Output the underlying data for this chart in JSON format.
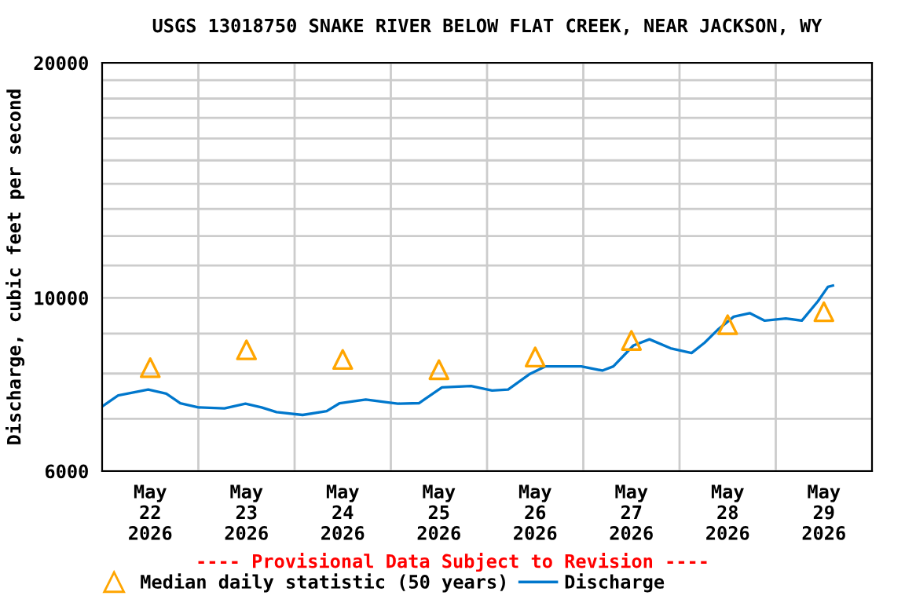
{
  "chart_data": {
    "type": "line",
    "title": "USGS 13018750 SNAKE RIVER BELOW FLAT CREEK, NEAR JACKSON, WY",
    "ylabel": "Discharge, cubic feet per second",
    "log": "y",
    "grid": true,
    "legend": "bottom",
    "xlim": [
      "2026-05-22T00:00",
      "2026-05-30T00:00"
    ],
    "xticks": [
      {
        "value": "2026-05-22T12:00",
        "label": "May\n22\n2026"
      },
      {
        "value": "2026-05-23T00:00",
        "label": null
      },
      {
        "value": "2026-05-23T12:00",
        "label": "May\n23\n2026"
      },
      {
        "value": "2026-05-24T00:00",
        "label": null
      },
      {
        "value": "2026-05-24T12:00",
        "label": "May\n24\n2026"
      },
      {
        "value": "2026-05-25T00:00",
        "label": null
      },
      {
        "value": "2026-05-25T12:00",
        "label": "May\n25\n2026"
      },
      {
        "value": "2026-05-26T00:00",
        "label": null
      },
      {
        "value": "2026-05-26T12:00",
        "label": "May\n26\n2026"
      },
      {
        "value": "2026-05-27T00:00",
        "label": null
      },
      {
        "value": "2026-05-27T12:00",
        "label": "May\n27\n2026"
      },
      {
        "value": "2026-05-28T00:00",
        "label": null
      },
      {
        "value": "2026-05-28T12:00",
        "label": "May\n28\n2026"
      },
      {
        "value": "2026-05-29T00:00",
        "label": null
      },
      {
        "value": "2026-05-29T12:00",
        "label": "May\n29\n2026"
      }
    ],
    "ylim": [
      6000,
      20000
    ],
    "yticks": [
      6000,
      {
        "value": 7000,
        "label": null
      },
      {
        "value": 8000,
        "label": null
      },
      {
        "value": 9000,
        "label": null
      },
      10000,
      {
        "value": 11000,
        "label": null
      },
      {
        "value": 12000,
        "label": null
      },
      {
        "value": 13000,
        "label": null
      },
      {
        "value": 14000,
        "label": null
      },
      {
        "value": 15000,
        "label": null
      },
      {
        "value": 16000,
        "label": null
      },
      {
        "value": 17000,
        "label": null
      },
      {
        "value": 18000,
        "label": null
      },
      {
        "value": 19000,
        "label": null
      },
      20000
    ],
    "series": [
      {
        "name": "Median daily statistic (50 years)",
        "type": "scatter",
        "marker": "triangle",
        "color": "#ffa500",
        "x": [
          "2026-05-22T12:00",
          "2026-05-23T12:00",
          "2026-05-24T12:00",
          "2026-05-25T12:00",
          "2026-05-26T12:00",
          "2026-05-27T12:00",
          "2026-05-28T12:00",
          "2026-05-29T12:00"
        ],
        "values": [
          8140,
          8580,
          8340,
          8090,
          8400,
          8820,
          9240,
          9600
        ]
      },
      {
        "name": "Discharge",
        "marker": "none",
        "color": "#0077cc",
        "x": [
          "2026-05-22T00:00",
          "2026-05-22T04:00",
          "2026-05-22T11:30",
          "2026-05-22T16:00",
          "2026-05-22T19:30",
          "2026-05-23T00:00",
          "2026-05-23T06:30",
          "2026-05-23T11:45",
          "2026-05-23T15:45",
          "2026-05-23T19:30",
          "2026-05-24T02:00",
          "2026-05-24T08:00",
          "2026-05-24T11:15",
          "2026-05-24T17:45",
          "2026-05-24T23:00",
          "2026-05-25T01:45",
          "2026-05-25T07:00",
          "2026-05-25T12:45",
          "2026-05-25T20:00",
          "2026-05-26T01:15",
          "2026-05-26T05:15",
          "2026-05-26T10:30",
          "2026-05-26T14:30",
          "2026-05-26T23:30",
          "2026-05-27T04:45",
          "2026-05-27T07:30",
          "2026-05-27T12:30",
          "2026-05-27T16:30",
          "2026-05-27T21:45",
          "2026-05-28T03:00",
          "2026-05-28T06:15",
          "2026-05-28T09:30",
          "2026-05-28T13:30",
          "2026-05-28T17:30",
          "2026-05-28T21:15",
          "2026-05-29T02:30",
          "2026-05-29T06:30",
          "2026-05-29T10:30",
          "2026-05-29T13:00",
          "2026-05-29T14:15"
        ],
        "values": [
          7260,
          7500,
          7630,
          7540,
          7330,
          7240,
          7220,
          7320,
          7240,
          7140,
          7080,
          7160,
          7330,
          7410,
          7350,
          7320,
          7330,
          7680,
          7710,
          7610,
          7630,
          7980,
          8170,
          8170,
          8070,
          8170,
          8690,
          8850,
          8620,
          8500,
          8760,
          9100,
          9460,
          9560,
          9350,
          9410,
          9350,
          9900,
          10330,
          10370
        ]
      }
    ],
    "annotations": [
      "---- Provisional Data Subject to Revision ----"
    ]
  }
}
